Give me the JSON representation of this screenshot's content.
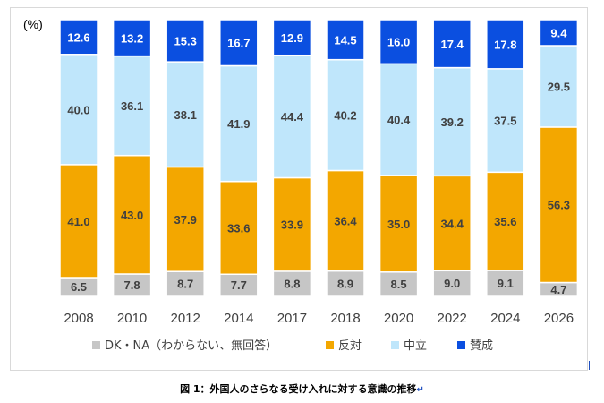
{
  "chart_data": {
    "type": "bar",
    "stacked": true,
    "orientation": "vertical",
    "unit_label": "(%)",
    "categories": [
      "2008",
      "2010",
      "2012",
      "2014",
      "2017",
      "2018",
      "2020",
      "2022",
      "2024",
      "2026"
    ],
    "series": [
      {
        "name": "DK・NA（わからない、無回答）",
        "color": "#c6c6c6",
        "values": [
          6.5,
          7.8,
          8.7,
          7.7,
          8.8,
          8.9,
          8.5,
          9.0,
          9.1,
          4.7
        ]
      },
      {
        "name": "反対",
        "color": "#f3a700",
        "values": [
          41.0,
          43.0,
          37.9,
          33.6,
          33.9,
          36.4,
          35.0,
          34.4,
          35.6,
          56.3
        ]
      },
      {
        "name": "中立",
        "color": "#bfe6fb",
        "values": [
          40.0,
          36.1,
          38.1,
          41.9,
          44.4,
          40.2,
          40.4,
          39.2,
          37.5,
          29.5
        ]
      },
      {
        "name": "賛成",
        "color": "#0b4fe0",
        "values": [
          12.6,
          13.2,
          15.3,
          16.7,
          12.9,
          14.5,
          16.0,
          17.4,
          17.8,
          9.4
        ]
      }
    ],
    "data_labels": true,
    "ylim": [
      0,
      100
    ],
    "grid": false,
    "legend_position": "bottom"
  },
  "caption": "図 1：外国人のさらなる受け入れに対する意識の推移",
  "marks": {
    "paragraph": "↵"
  }
}
